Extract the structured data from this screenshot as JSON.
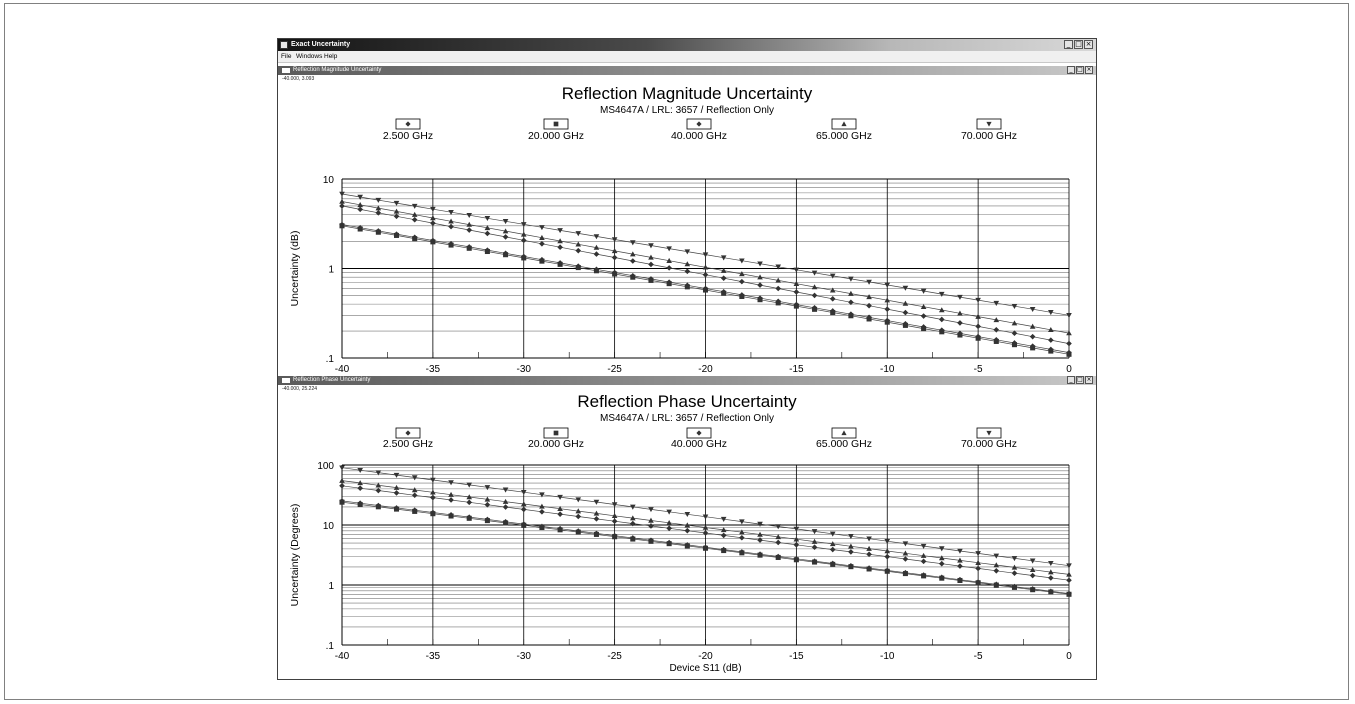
{
  "app": {
    "title": "Exact Uncertainty",
    "window_buttons": [
      "_",
      "□",
      "×"
    ],
    "menu": [
      "File",
      "Windows",
      "Help"
    ]
  },
  "charts": [
    {
      "window_title": "Reflection Magnitude Uncertainty",
      "readout": "-40.000, 3.093",
      "window_buttons": [
        "_",
        "□",
        "×"
      ]
    },
    {
      "window_title": "Reflection Phase Uncertainty",
      "readout": "-40.000, 25.224",
      "window_buttons": [
        "_",
        "□",
        "×"
      ]
    }
  ],
  "chart_data": [
    {
      "type": "line",
      "title": "Reflection Magnitude Uncertainty",
      "subtitle": "MS4647A / LRL: 3657 / Reflection Only",
      "xlabel": "Device S11 (dB)",
      "ylabel": "Uncertainty (dB)",
      "xlim": [
        -40,
        0
      ],
      "ylim": [
        0.1,
        10
      ],
      "yscale": "log",
      "xticks": [
        "-40",
        "-35",
        "-30",
        "-25",
        "-20",
        "-15",
        "-10",
        "-5",
        "0"
      ],
      "yticks": [
        {
          "value": 10,
          "label": "10"
        },
        {
          "value": 1,
          "label": "1"
        },
        {
          "value": 0.1,
          "label": ".1"
        }
      ],
      "grid": true,
      "legend_position": "top",
      "x": [
        -40,
        -39,
        -38,
        -37,
        -36,
        -35,
        -34,
        -33,
        -32,
        -31,
        -30,
        -29,
        -28,
        -27,
        -26,
        -25,
        -24,
        -23,
        -22,
        -21,
        -20,
        -19,
        -18,
        -17,
        -16,
        -15,
        -14,
        -13,
        -12,
        -11,
        -10,
        -9,
        -8,
        -7,
        -6,
        -5,
        -4,
        -3,
        -2,
        -1,
        0
      ],
      "series": [
        {
          "name": "2.500 GHz",
          "marker": "diamond",
          "start": 3.1,
          "end": 0.115
        },
        {
          "name": "20.000 GHz",
          "marker": "square",
          "start": 3.0,
          "end": 0.11
        },
        {
          "name": "40.000 GHz",
          "marker": "diamond",
          "start": 5.0,
          "end": 0.145
        },
        {
          "name": "65.000 GHz",
          "marker": "triangle-up",
          "start": 5.6,
          "end": 0.19
        },
        {
          "name": "70.000 GHz",
          "marker": "triangle-down",
          "start": 6.8,
          "end": 0.3
        }
      ]
    },
    {
      "type": "line",
      "title": "Reflection Phase Uncertainty",
      "subtitle": "MS4647A / LRL: 3657 / Reflection Only",
      "xlabel": "Device S11 (dB)",
      "ylabel": "Uncertainty (Degrees)",
      "xlim": [
        -40,
        0
      ],
      "ylim": [
        0.1,
        100
      ],
      "yscale": "log",
      "xticks": [
        "-40",
        "-35",
        "-30",
        "-25",
        "-20",
        "-15",
        "-10",
        "-5",
        "0"
      ],
      "yticks": [
        {
          "value": 100,
          "label": "100"
        },
        {
          "value": 10,
          "label": "10"
        },
        {
          "value": 1,
          "label": "1"
        },
        {
          "value": 0.1,
          "label": ".1"
        }
      ],
      "grid": true,
      "legend_position": "top",
      "x": [
        -40,
        -39,
        -38,
        -37,
        -36,
        -35,
        -34,
        -33,
        -32,
        -31,
        -30,
        -29,
        -28,
        -27,
        -26,
        -25,
        -24,
        -23,
        -22,
        -21,
        -20,
        -19,
        -18,
        -17,
        -16,
        -15,
        -14,
        -13,
        -12,
        -11,
        -10,
        -9,
        -8,
        -7,
        -6,
        -5,
        -4,
        -3,
        -2,
        -1,
        0
      ],
      "series": [
        {
          "name": "2.500 GHz",
          "marker": "diamond",
          "start": 25.2,
          "end": 0.72
        },
        {
          "name": "20.000 GHz",
          "marker": "square",
          "start": 24,
          "end": 0.7
        },
        {
          "name": "40.000 GHz",
          "marker": "diamond",
          "start": 45,
          "end": 1.2
        },
        {
          "name": "65.000 GHz",
          "marker": "triangle-up",
          "start": 55,
          "end": 1.5
        },
        {
          "name": "70.000 GHz",
          "marker": "triangle-down",
          "start": 90,
          "end": 2.1
        }
      ]
    }
  ]
}
